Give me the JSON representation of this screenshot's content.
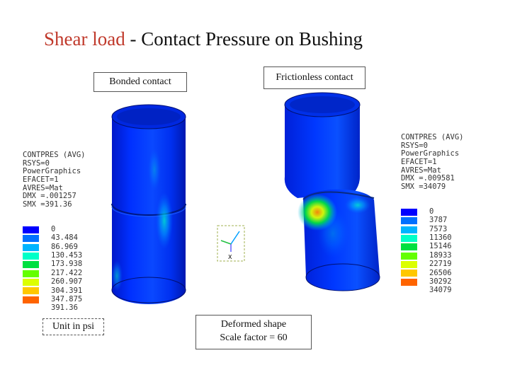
{
  "title": {
    "part1": "Shear load",
    "sep": " - ",
    "part2": "Contact Pressure on Bushing"
  },
  "labels": {
    "bonded": "Bonded contact",
    "frictionless": "Frictionless contact",
    "unit": "Unit in psi",
    "deformed_line1": "Deformed shape",
    "deformed_line2": "Scale factor = 60"
  },
  "legend_left": {
    "header": [
      "CONTPRES (AVG)",
      "RSYS=0",
      "PowerGraphics",
      "EFACET=1",
      "AVRES=Mat",
      "DMX =.001257",
      "SMX =391.36"
    ],
    "values": [
      "0",
      "43.484",
      "86.969",
      "130.453",
      "173.938",
      "217.422",
      "260.907",
      "304.391",
      "347.875",
      "391.36"
    ]
  },
  "legend_right": {
    "header": [
      "CONTPRES (AVG)",
      "RSYS=0",
      "PowerGraphics",
      "EFACET=1",
      "AVRES=Mat",
      "DMX =.009581",
      "SMX =34079"
    ],
    "values": [
      "0",
      "3787",
      "7573",
      "11360",
      "15146",
      "18933",
      "22719",
      "26506",
      "30292",
      "34079"
    ]
  },
  "colors": {
    "title_accent": "#c0392b",
    "scale": [
      "#0000ff",
      "#0070ff",
      "#00b4ff",
      "#00ffc8",
      "#00e040",
      "#64ff00",
      "#dcff00",
      "#ffc800",
      "#ff6400",
      "#ff0000"
    ]
  },
  "icons": [
    "axis-triad-icon"
  ]
}
